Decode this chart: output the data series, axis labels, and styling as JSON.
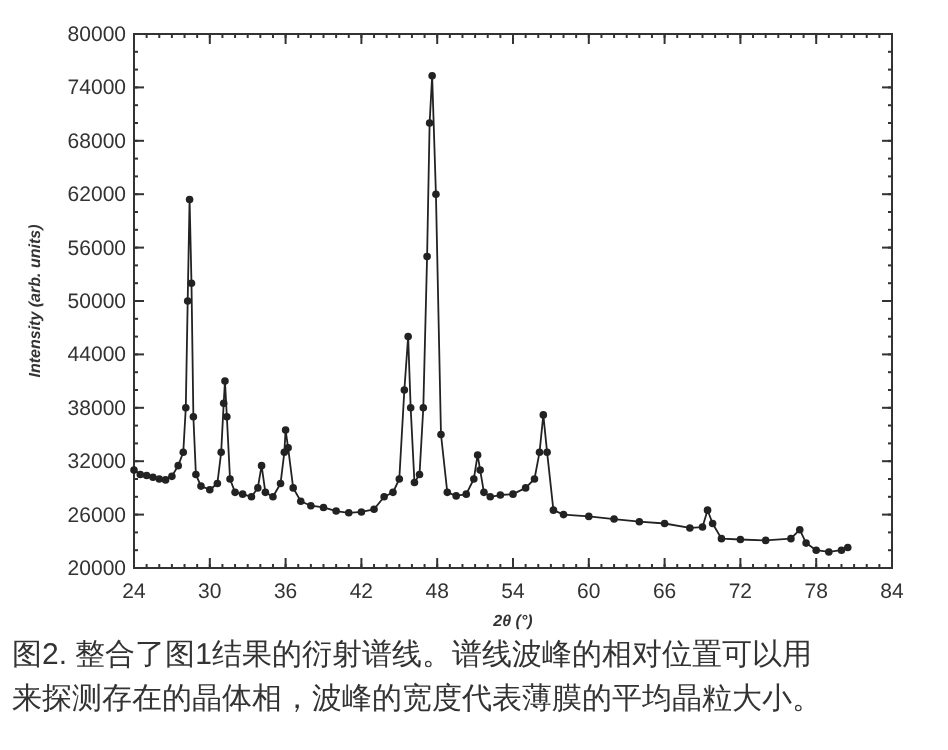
{
  "chart_data": {
    "type": "line",
    "xlabel": "2θ (°)",
    "ylabel": "Intensity (arb. units)",
    "xlim": [
      24,
      84
    ],
    "xticks": [
      24,
      30,
      36,
      42,
      48,
      54,
      60,
      66,
      72,
      78,
      84
    ],
    "ylim": [
      20000,
      80000
    ],
    "yticks": [
      20000,
      26000,
      32000,
      38000,
      44000,
      50000,
      56000,
      62000,
      68000,
      74000,
      80000
    ],
    "marker": "circle",
    "line_style": "solid",
    "annotations": [
      "图2. 整合了图1结果的衍射谱线。谱线波峰的相对位置可以用来探测存在的晶体相，波峰的宽度代表薄膜的平均晶粒大小。"
    ],
    "series": [
      {
        "color": "#222222",
        "x": [
          24,
          24.5,
          25,
          25.5,
          26,
          26.5,
          27,
          27.5,
          27.9,
          28.1,
          28.25,
          28.4,
          28.55,
          28.7,
          28.9,
          29.3,
          30,
          30.6,
          30.9,
          31.1,
          31.2,
          31.35,
          31.6,
          32,
          32.6,
          33.3,
          33.8,
          34.1,
          34.4,
          35,
          35.6,
          35.9,
          36,
          36.2,
          36.6,
          37.2,
          38,
          39,
          40,
          41,
          42,
          43,
          43.8,
          44.5,
          45,
          45.4,
          45.7,
          45.9,
          46.2,
          46.6,
          46.9,
          47.2,
          47.4,
          47.6,
          47.9,
          48.3,
          48.8,
          49.5,
          50.3,
          50.9,
          51.2,
          51.4,
          51.7,
          52.2,
          53,
          54,
          55,
          55.7,
          56.1,
          56.4,
          56.7,
          57.2,
          58,
          60,
          62,
          64,
          66,
          68,
          69,
          69.4,
          69.8,
          70.5,
          72,
          74,
          76,
          76.7,
          77.2,
          78,
          79,
          80,
          80.5
        ],
        "values": [
          31000,
          30500,
          30400,
          30200,
          30000,
          29900,
          30300,
          31500,
          33000,
          38000,
          50000,
          61400,
          52000,
          37000,
          30500,
          29200,
          28800,
          29500,
          33000,
          38500,
          41000,
          37000,
          30000,
          28500,
          28300,
          28000,
          29000,
          31500,
          28500,
          28000,
          29500,
          33000,
          35500,
          33500,
          29000,
          27500,
          27000,
          26800,
          26400,
          26200,
          26300,
          26600,
          28000,
          28500,
          30000,
          40000,
          46000,
          38000,
          29600,
          30500,
          38000,
          55000,
          70000,
          75300,
          62000,
          35000,
          28500,
          28100,
          28300,
          30000,
          32700,
          31000,
          28500,
          28000,
          28200,
          28300,
          29000,
          30000,
          33000,
          37200,
          33000,
          26500,
          26000,
          25800,
          25500,
          25200,
          25000,
          24500,
          24600,
          26500,
          25000,
          23300,
          23200,
          23100,
          23300,
          24300,
          22800,
          22000,
          21800,
          22000,
          22300
        ]
      }
    ]
  }
}
